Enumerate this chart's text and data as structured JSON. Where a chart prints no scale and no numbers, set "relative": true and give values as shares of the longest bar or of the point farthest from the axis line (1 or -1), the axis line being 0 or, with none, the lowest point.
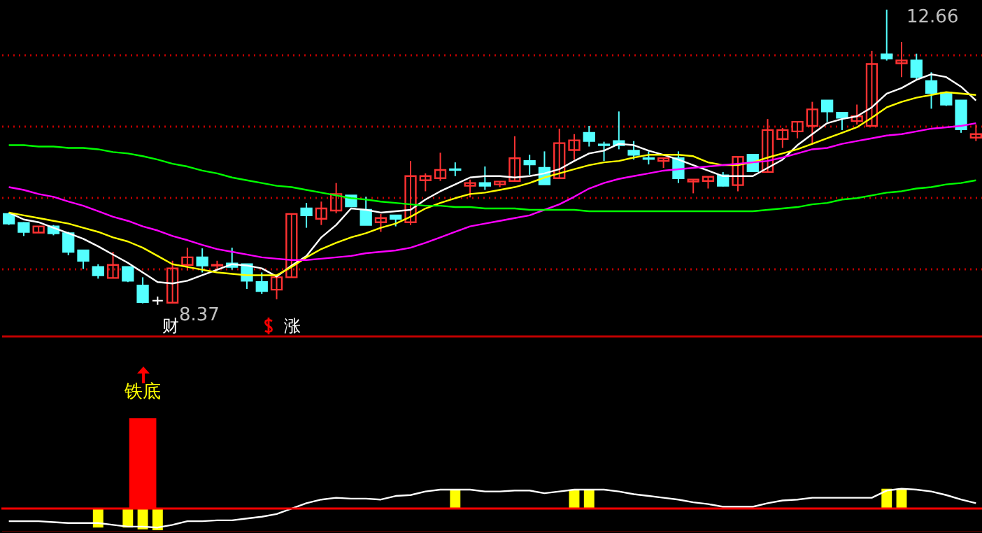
{
  "chart_data": [
    {
      "type": "candlestick",
      "categories": [
        null,
        null,
        null,
        null,
        null,
        null,
        null,
        null,
        null,
        null,
        null,
        null,
        null,
        null,
        null,
        null,
        null,
        null,
        null,
        null,
        null,
        null,
        null,
        null,
        null,
        null,
        null,
        null,
        null,
        null,
        null,
        null,
        null,
        null,
        null,
        null,
        null,
        null,
        null,
        null,
        null,
        null,
        null,
        null,
        null,
        null,
        null,
        null,
        null,
        null,
        null,
        null,
        null,
        null,
        null,
        null,
        null,
        null,
        null,
        null,
        null,
        null,
        null,
        null,
        null,
        null
      ],
      "ohlc": [
        [
          9.69,
          9.71,
          9.53,
          9.55
        ],
        [
          9.56,
          9.57,
          9.37,
          9.43
        ],
        [
          9.42,
          9.51,
          9.42,
          9.51
        ],
        [
          9.51,
          9.53,
          9.38,
          9.41
        ],
        [
          9.41,
          9.43,
          9.09,
          9.14
        ],
        [
          9.16,
          9.16,
          8.89,
          9.01
        ],
        [
          8.92,
          8.96,
          8.75,
          8.8
        ],
        [
          8.76,
          9.14,
          8.76,
          8.95
        ],
        [
          8.92,
          8.92,
          8.7,
          8.72
        ],
        [
          8.65,
          8.77,
          8.39,
          8.41
        ],
        [
          8.43,
          8.49,
          8.37,
          8.43
        ],
        [
          8.4,
          9.01,
          8.39,
          8.9
        ],
        [
          8.95,
          9.2,
          8.87,
          9.06
        ],
        [
          9.06,
          9.19,
          8.84,
          8.94
        ],
        [
          8.94,
          9.01,
          8.89,
          8.95
        ],
        [
          8.97,
          9.2,
          8.88,
          8.92
        ],
        [
          8.96,
          8.96,
          8.6,
          8.72
        ],
        [
          8.7,
          8.84,
          8.53,
          8.57
        ],
        [
          8.59,
          8.77,
          8.45,
          8.77
        ],
        [
          8.77,
          9.69,
          8.77,
          9.69
        ],
        [
          9.77,
          9.85,
          9.49,
          9.67
        ],
        [
          9.62,
          9.87,
          9.53,
          9.77
        ],
        [
          9.74,
          10.14,
          9.7,
          9.98
        ],
        [
          9.96,
          9.96,
          9.8,
          9.8
        ],
        [
          9.75,
          9.94,
          9.53,
          9.53
        ],
        [
          9.57,
          9.69,
          9.43,
          9.63
        ],
        [
          9.67,
          9.67,
          9.51,
          9.62
        ],
        [
          9.57,
          10.46,
          9.53,
          10.24
        ],
        [
          10.18,
          10.28,
          10.02,
          10.24
        ],
        [
          10.21,
          10.58,
          10.17,
          10.33
        ],
        [
          10.34,
          10.44,
          10.24,
          10.33
        ],
        [
          10.1,
          10.19,
          9.93,
          10.14
        ],
        [
          10.14,
          10.38,
          10.04,
          10.1
        ],
        [
          10.12,
          10.16,
          10.08,
          10.16
        ],
        [
          10.17,
          10.82,
          10.16,
          10.5
        ],
        [
          10.46,
          10.55,
          10.26,
          10.41
        ],
        [
          10.36,
          10.6,
          10.12,
          10.12
        ],
        [
          10.21,
          10.93,
          10.21,
          10.72
        ],
        [
          10.62,
          10.85,
          10.48,
          10.76
        ],
        [
          10.87,
          10.97,
          10.67,
          10.75
        ],
        [
          10.7,
          10.74,
          10.46,
          10.69
        ],
        [
          10.75,
          11.18,
          10.63,
          10.69
        ],
        [
          10.61,
          10.75,
          10.48,
          10.55
        ],
        [
          10.5,
          10.6,
          10.41,
          10.49
        ],
        [
          10.46,
          10.5,
          10.36,
          10.5
        ],
        [
          10.5,
          10.6,
          10.14,
          10.21
        ],
        [
          10.16,
          10.19,
          9.99,
          10.19
        ],
        [
          10.17,
          10.23,
          10.06,
          10.23
        ],
        [
          10.25,
          10.3,
          10.09,
          10.1
        ],
        [
          10.11,
          10.52,
          10.02,
          10.52
        ],
        [
          10.55,
          10.55,
          10.31,
          10.31
        ],
        [
          10.3,
          11.07,
          10.3,
          10.91
        ],
        [
          10.78,
          10.94,
          10.65,
          10.91
        ],
        [
          10.89,
          11.03,
          10.79,
          11.03
        ],
        [
          10.97,
          11.32,
          10.7,
          11.21
        ],
        [
          11.34,
          11.34,
          11.03,
          11.18
        ],
        [
          11.16,
          11.16,
          10.91,
          11.09
        ],
        [
          11.04,
          11.28,
          10.99,
          11.11
        ],
        [
          10.97,
          12.06,
          10.97,
          11.87
        ],
        [
          12.01,
          12.66,
          11.92,
          11.95
        ],
        [
          11.88,
          12.19,
          11.68,
          11.92
        ],
        [
          11.92,
          12.02,
          11.65,
          11.68
        ],
        [
          11.62,
          11.75,
          11.22,
          11.45
        ],
        [
          11.45,
          11.45,
          11.26,
          11.28
        ],
        [
          11.34,
          11.34,
          10.87,
          10.92
        ],
        [
          10.8,
          10.99,
          10.75,
          10.85
        ]
      ],
      "colors": [
        "#54ffff",
        "#54ffff",
        "#ff3232",
        "#54ffff",
        "#54ffff",
        "#54ffff",
        "#54ffff",
        "#ff3232",
        "#54ffff",
        "#54ffff",
        "#ffffff",
        "#ff3232",
        "#ff3232",
        "#54ffff",
        "#ff3232",
        "#54ffff",
        "#54ffff",
        "#54ffff",
        "#ff3232",
        "#ff3232",
        "#54ffff",
        "#ff3232",
        "#ff3232",
        "#54ffff",
        "#54ffff",
        "#ff3232",
        "#54ffff",
        "#ff3232",
        "#ff3232",
        "#ff3232",
        "#54ffff",
        "#ff3232",
        "#54ffff",
        "#ff3232",
        "#ff3232",
        "#54ffff",
        "#54ffff",
        "#ff3232",
        "#ff3232",
        "#54ffff",
        "#54ffff",
        "#54ffff",
        "#54ffff",
        "#54ffff",
        "#ff3232",
        "#54ffff",
        "#ff3232",
        "#ff3232",
        "#54ffff",
        "#ff3232",
        "#54ffff",
        "#ff3232",
        "#ff3232",
        "#ff3232",
        "#ff3232",
        "#54ffff",
        "#54ffff",
        "#ff3232",
        "#ff3232",
        "#54ffff",
        "#ff3232",
        "#54ffff",
        "#54ffff",
        "#54ffff",
        "#54ffff",
        "#ff3232"
      ],
      "series": [
        {
          "type": "line",
          "color": "#ffffff",
          "values": [
            9.71,
            9.61,
            9.57,
            9.49,
            9.41,
            9.33,
            9.22,
            9.1,
            8.98,
            8.84,
            8.7,
            8.68,
            8.72,
            8.8,
            8.88,
            8.96,
            8.94,
            8.9,
            8.78,
            8.94,
            9.08,
            9.35,
            9.53,
            9.77,
            9.75,
            9.71,
            9.73,
            9.75,
            9.9,
            10.02,
            10.12,
            10.22,
            10.24,
            10.24,
            10.22,
            10.24,
            10.28,
            10.34,
            10.46,
            10.57,
            10.61,
            10.71,
            10.69,
            10.61,
            10.55,
            10.48,
            10.4,
            10.32,
            10.24,
            10.24,
            10.24,
            10.36,
            10.48,
            10.69,
            10.85,
            11.01,
            11.07,
            11.11,
            11.24,
            11.44,
            11.52,
            11.64,
            11.72,
            11.68,
            11.54,
            11.34
          ]
        },
        {
          "type": "line",
          "color": "#ffff00",
          "values": [
            9.71,
            9.67,
            9.63,
            9.59,
            9.55,
            9.49,
            9.43,
            9.35,
            9.29,
            9.2,
            9.08,
            8.96,
            8.92,
            8.88,
            8.84,
            8.82,
            8.8,
            8.8,
            8.8,
            8.92,
            9.06,
            9.18,
            9.27,
            9.35,
            9.41,
            9.49,
            9.55,
            9.65,
            9.77,
            9.85,
            9.92,
            9.98,
            10.0,
            10.04,
            10.08,
            10.14,
            10.22,
            10.28,
            10.34,
            10.4,
            10.44,
            10.46,
            10.51,
            10.55,
            10.55,
            10.55,
            10.53,
            10.44,
            10.4,
            10.4,
            10.44,
            10.51,
            10.57,
            10.63,
            10.71,
            10.79,
            10.87,
            10.95,
            11.09,
            11.24,
            11.32,
            11.38,
            11.42,
            11.46,
            11.44,
            11.42
          ]
        },
        {
          "type": "line",
          "color": "#ff00ff",
          "values": [
            10.08,
            10.04,
            9.98,
            9.94,
            9.87,
            9.81,
            9.73,
            9.65,
            9.59,
            9.51,
            9.45,
            9.37,
            9.31,
            9.24,
            9.18,
            9.14,
            9.1,
            9.06,
            9.04,
            9.02,
            9.02,
            9.04,
            9.06,
            9.08,
            9.12,
            9.14,
            9.16,
            9.2,
            9.27,
            9.35,
            9.43,
            9.51,
            9.55,
            9.59,
            9.63,
            9.67,
            9.75,
            9.83,
            9.94,
            10.06,
            10.14,
            10.2,
            10.24,
            10.28,
            10.32,
            10.34,
            10.36,
            10.38,
            10.4,
            10.42,
            10.44,
            10.46,
            10.51,
            10.57,
            10.63,
            10.65,
            10.71,
            10.75,
            10.79,
            10.83,
            10.85,
            10.89,
            10.93,
            10.95,
            10.97,
            11.01
          ]
        },
        {
          "type": "line",
          "color": "#00ff00",
          "values": [
            10.69,
            10.69,
            10.67,
            10.67,
            10.65,
            10.65,
            10.63,
            10.59,
            10.57,
            10.53,
            10.48,
            10.42,
            10.38,
            10.32,
            10.28,
            10.22,
            10.18,
            10.14,
            10.1,
            10.08,
            10.04,
            10.0,
            9.96,
            9.92,
            9.9,
            9.87,
            9.85,
            9.83,
            9.81,
            9.81,
            9.79,
            9.79,
            9.77,
            9.77,
            9.77,
            9.75,
            9.75,
            9.75,
            9.75,
            9.73,
            9.73,
            9.73,
            9.73,
            9.73,
            9.73,
            9.73,
            9.73,
            9.73,
            9.73,
            9.73,
            9.73,
            9.75,
            9.77,
            9.79,
            9.83,
            9.85,
            9.9,
            9.92,
            9.96,
            10.0,
            10.02,
            10.06,
            10.08,
            10.12,
            10.14,
            10.18
          ]
        }
      ],
      "ylim": [
        7.92,
        12.8
      ],
      "yticks": [
        {
          "value": 12.01,
          "label": null
        },
        {
          "value": 10.97,
          "label": null
        },
        {
          "value": 9.94,
          "label": null
        },
        {
          "value": 8.9,
          "label": null
        }
      ],
      "grid": "y",
      "tick_labels": false,
      "annotations": [
        "12.66",
        "8.37",
        "财",
        "涨"
      ]
    },
    {
      "type": "bar",
      "relative": true,
      "categories": [
        null,
        null,
        null,
        null,
        null,
        null,
        null,
        null,
        null,
        null,
        null,
        null,
        null,
        null,
        null,
        null,
        null,
        null,
        null,
        null,
        null,
        null,
        null,
        null,
        null,
        null,
        null,
        null,
        null,
        null,
        null,
        null,
        null,
        null,
        null,
        null,
        null,
        null,
        null,
        null,
        null,
        null,
        null,
        null,
        null,
        null,
        null,
        null,
        null,
        null,
        null,
        null,
        null,
        null,
        null,
        null,
        null,
        null,
        null,
        null,
        null,
        null,
        null,
        null,
        null,
        null
      ],
      "series": [
        {
          "color": "#ff0000",
          "values": [
            null,
            null,
            null,
            null,
            null,
            null,
            null,
            null,
            null,
            1,
            null,
            null,
            null,
            null,
            null,
            null,
            null,
            null,
            null,
            null,
            null,
            null,
            null,
            null,
            null,
            null,
            null,
            null,
            null,
            null,
            null,
            null,
            null,
            null,
            null,
            null,
            null,
            null,
            null,
            null,
            null,
            null,
            null,
            null,
            null,
            null,
            null,
            null,
            null,
            null,
            null,
            null,
            null,
            null,
            null,
            null,
            null,
            null,
            null,
            null,
            null,
            null,
            null,
            null,
            null,
            null
          ]
        },
        {
          "color": "#ffff00",
          "values": [
            null,
            null,
            null,
            null,
            null,
            null,
            -0.21,
            null,
            -0.21,
            -0.23,
            -0.24,
            null,
            null,
            null,
            null,
            null,
            null,
            null,
            null,
            null,
            null,
            null,
            null,
            null,
            null,
            null,
            null,
            null,
            null,
            null,
            0.21,
            null,
            null,
            null,
            null,
            null,
            null,
            null,
            0.21,
            0.21,
            null,
            null,
            null,
            null,
            null,
            null,
            null,
            null,
            null,
            null,
            null,
            null,
            null,
            null,
            null,
            null,
            null,
            null,
            null,
            0.22,
            0.22,
            null,
            null,
            null,
            null,
            null
          ]
        },
        {
          "type": "line",
          "color": "#ffffff",
          "values": [
            -0.14,
            -0.14,
            -0.14,
            -0.15,
            -0.16,
            -0.16,
            -0.16,
            -0.18,
            -0.2,
            -0.2,
            -0.21,
            -0.18,
            -0.14,
            -0.14,
            -0.13,
            -0.13,
            -0.11,
            -0.09,
            -0.06,
            0.0,
            0.06,
            0.1,
            0.12,
            0.11,
            0.11,
            0.1,
            0.14,
            0.15,
            0.19,
            0.21,
            0.21,
            0.21,
            0.19,
            0.19,
            0.2,
            0.2,
            0.17,
            0.19,
            0.21,
            0.21,
            0.21,
            0.19,
            0.16,
            0.14,
            0.12,
            0.1,
            0.07,
            0.05,
            0.02,
            0.02,
            0.02,
            0.06,
            0.09,
            0.1,
            0.12,
            0.12,
            0.12,
            0.12,
            0.12,
            0.2,
            0.22,
            0.21,
            0.19,
            0.15,
            0.1,
            0.06
          ]
        }
      ],
      "ref_lines": [
        {
          "axis": "y",
          "value": 0,
          "color": "#ff0000"
        }
      ],
      "tick_labels": false,
      "annotations": [
        "铁底"
      ]
    }
  ]
}
